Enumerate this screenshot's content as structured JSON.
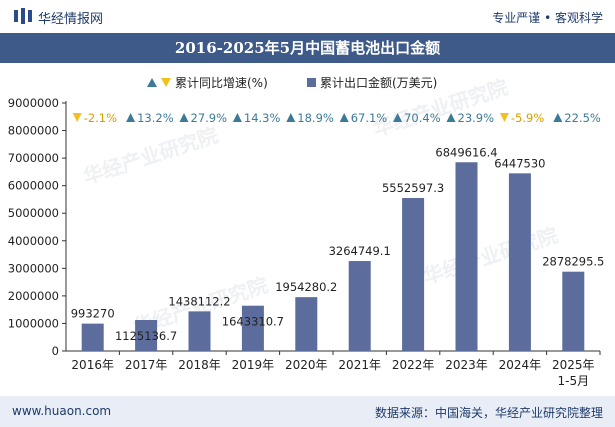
{
  "header": {
    "brand": "华经情报网",
    "tagline": "专业严谨 • 客观科学"
  },
  "title": "2016-2025年5月中国蓄电池出口金额",
  "legend": {
    "growth_label": "累计同比增速(%)",
    "amount_label": "累计出口金额(万美元)"
  },
  "footer": {
    "left": "www.huaon.com",
    "right": "数据来源：中国海关，华经产业研究院整理"
  },
  "watermark": "华经产业研究院",
  "colors": {
    "bar": "#5b6c9d",
    "up": "#3c7a97",
    "down": "#f2c01e",
    "title_bg": "#3e5a88"
  },
  "chart_data": {
    "type": "bar",
    "title": "2016-2025年5月中国蓄电池出口金额",
    "categories": [
      "2016年",
      "2017年",
      "2018年",
      "2019年",
      "2020年",
      "2021年",
      "2022年",
      "2023年",
      "2024年",
      "2025年\n1-5月"
    ],
    "series": [
      {
        "name": "累计出口金额(万美元)",
        "values": [
          993270,
          1125136.7,
          1438112.2,
          1643310.7,
          1954280.2,
          3264749.1,
          5552597.3,
          6849616.4,
          6447530,
          2878295.5
        ],
        "labels": [
          "993270",
          "1125136.7",
          "1438112.2",
          "1643310.7",
          "1954280.2",
          "3264749.1",
          "5552597.3",
          "6849616.4",
          "6447530",
          "2878295.5"
        ]
      },
      {
        "name": "累计同比增速(%)",
        "values": [
          -2.1,
          13.2,
          27.9,
          14.3,
          18.9,
          67.1,
          70.4,
          23.9,
          -5.9,
          22.5
        ],
        "labels": [
          "-2.1%",
          "13.2%",
          "27.9%",
          "14.3%",
          "18.9%",
          "67.1%",
          "70.4%",
          "23.9%",
          "-5.9%",
          "22.5%"
        ]
      }
    ],
    "ylim": [
      0,
      9000000
    ],
    "yticks": [
      "0",
      "1000000",
      "2000000",
      "3000000",
      "4000000",
      "5000000",
      "6000000",
      "7000000",
      "8000000",
      "9000000"
    ],
    "grid": false,
    "legend_position": "top"
  }
}
